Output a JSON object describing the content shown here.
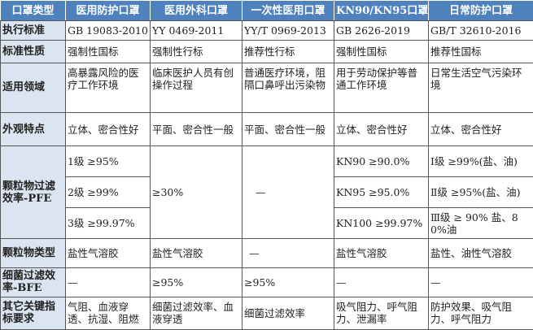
{
  "headers": [
    "口罩类型",
    "医用防护口罩",
    "医用外科口罩",
    "一次性医用口罩",
    "KN90/KN95口罩",
    "日常防护口罩"
  ],
  "rows": {
    "standard": {
      "label": "执行标准",
      "cells": [
        "GB 19083-2010",
        "YY 0469-2011",
        "YY/T 0969-2013",
        "GB 2626-2019",
        "GB/T 32610-2016"
      ]
    },
    "nature": {
      "label": "标准性质",
      "cells": [
        "强制性国标",
        "强制性行标",
        "推荐性行标",
        "强制性国标",
        "推荐性国标"
      ]
    },
    "scope": {
      "label": "适用领域",
      "cells": [
        "高暴露风险的医疗工作环境",
        "临床医护人员有创操作过程",
        "普通医疗环境，阻隔口鼻呼出污染物",
        "用于劳动保护等普通工作环境",
        "日常生活空气污染环境"
      ]
    },
    "appearance": {
      "label": "外观特点",
      "cells": [
        "立体、密合性好",
        "平面、密合性一般",
        "平面、密合性一般",
        "立体、密合性好",
        "立体、密合性好"
      ]
    },
    "pfe": {
      "label": "颗粒物过滤效率-PFE",
      "medical_protective": [
        "1级 ≥95%",
        "2级 ≥99%",
        "3级 ≥99.97%"
      ],
      "surgical": "≥30%",
      "disposable": "—",
      "kn": [
        "KN90 ≥90.0%",
        "KN95 ≥95.0%",
        "KN100 ≥99.97%"
      ],
      "daily": [
        "Ⅰ级 ≥99%(盐、油)",
        "Ⅱ级 ≥95%(盐、油)",
        "Ⅲ级 ≥ 90% 盐、80%油"
      ]
    },
    "particle_type": {
      "label": "颗粒物类型",
      "cells": [
        "盐性气溶胶",
        "盐性气溶胶",
        "—",
        "盐性气溶胶",
        "盐性、油性气溶胶"
      ]
    },
    "bfe": {
      "label": "细菌过滤效率-BFE",
      "cells": [
        "—",
        "≥95%",
        "≥95%",
        "—",
        "—"
      ]
    },
    "other": {
      "label": "其它关键指标要求",
      "cells": [
        "气阻、血液穿透、抗湿、阻燃",
        "细菌过滤效率、血液穿透",
        "细菌过滤效率",
        "吸气阻力、呼气阻力、泄漏率",
        "防护效果、吸气阻力、呼气阻力"
      ]
    }
  }
}
